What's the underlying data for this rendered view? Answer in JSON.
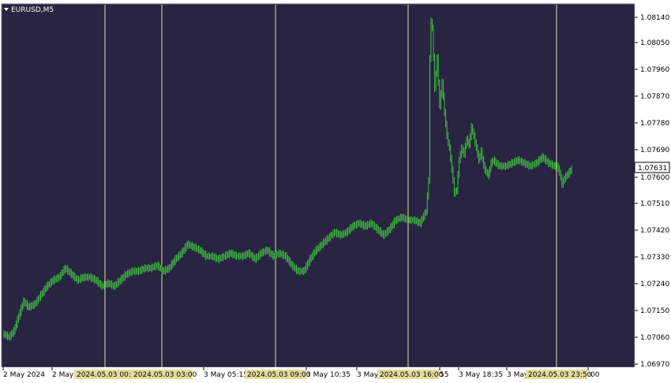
{
  "chart_data": {
    "type": "bar",
    "title": "EURUSD,M5",
    "series": [
      {
        "name": "",
        "kind": "ohlc_bars"
      }
    ],
    "ylim": [
      1.0697,
      1.0818
    ],
    "yticks": [
      "1.08140",
      "1.08050",
      "1.07960",
      "1.07870",
      "1.07780",
      "1.07690",
      "1.07600",
      "1.07510",
      "1.07420",
      "1.07330",
      "1.07240",
      "1.07150",
      "1.07060",
      "1.06970"
    ],
    "current_price": "1.07631",
    "xtick_labels": [
      "2 May 2024",
      "2 May",
      "3 May 05:15",
      "3 May 10:35",
      "3 May",
      "55",
      "3 May 18:35",
      "3 May",
      ":00"
    ],
    "vertical_markers": [
      "2024.05.03 00:00",
      "2024.05.03 03:00",
      "2024.05.03 09:00",
      "2024.05.03 16:00",
      "2024.05.03 23:50"
    ],
    "price_path": [
      [
        0,
        1.0708
      ],
      [
        4,
        1.0707
      ],
      [
        8,
        1.0709
      ],
      [
        12,
        1.0714
      ],
      [
        16,
        1.0719
      ],
      [
        20,
        1.0717
      ],
      [
        25,
        1.0718
      ],
      [
        30,
        1.0721
      ],
      [
        35,
        1.0724
      ],
      [
        40,
        1.0726
      ],
      [
        45,
        1.0727
      ],
      [
        50,
        1.073
      ],
      [
        55,
        1.0728
      ],
      [
        60,
        1.0726
      ],
      [
        65,
        1.0727
      ],
      [
        70,
        1.0727
      ],
      [
        75,
        1.0726
      ],
      [
        80,
        1.0724
      ],
      [
        85,
        1.0725
      ],
      [
        90,
        1.0724
      ],
      [
        95,
        1.0726
      ],
      [
        100,
        1.0728
      ],
      [
        105,
        1.0729
      ],
      [
        110,
        1.0729
      ],
      [
        115,
        1.073
      ],
      [
        120,
        1.073
      ],
      [
        125,
        1.0731
      ],
      [
        130,
        1.0729
      ],
      [
        135,
        1.073
      ],
      [
        140,
        1.0733
      ],
      [
        145,
        1.0735
      ],
      [
        150,
        1.0738
      ],
      [
        155,
        1.0737
      ],
      [
        160,
        1.0736
      ],
      [
        165,
        1.0734
      ],
      [
        170,
        1.0734
      ],
      [
        175,
        1.0733
      ],
      [
        180,
        1.0734
      ],
      [
        185,
        1.0735
      ],
      [
        190,
        1.0734
      ],
      [
        195,
        1.0734
      ],
      [
        200,
        1.0735
      ],
      [
        205,
        1.0733
      ],
      [
        210,
        1.0735
      ],
      [
        215,
        1.0736
      ],
      [
        220,
        1.0734
      ],
      [
        225,
        1.0735
      ],
      [
        230,
        1.0734
      ],
      [
        235,
        1.0731
      ],
      [
        240,
        1.0729
      ],
      [
        245,
        1.0729
      ],
      [
        250,
        1.0733
      ],
      [
        255,
        1.0736
      ],
      [
        260,
        1.0738
      ],
      [
        265,
        1.074
      ],
      [
        270,
        1.0742
      ],
      [
        275,
        1.0741
      ],
      [
        280,
        1.0742
      ],
      [
        285,
        1.0744
      ],
      [
        290,
        1.0745
      ],
      [
        295,
        1.0744
      ],
      [
        300,
        1.0745
      ],
      [
        305,
        1.0743
      ],
      [
        310,
        1.0741
      ],
      [
        315,
        1.0743
      ],
      [
        320,
        1.0746
      ],
      [
        325,
        1.0747
      ],
      [
        330,
        1.0746
      ],
      [
        335,
        1.0746
      ],
      [
        340,
        1.0745
      ],
      [
        345,
        1.0749
      ],
      [
        347,
        1.0759
      ],
      [
        348,
        1.08
      ],
      [
        349,
        1.0812
      ],
      [
        350,
        1.081
      ],
      [
        352,
        1.079
      ],
      [
        354,
        1.08
      ],
      [
        356,
        1.0784
      ],
      [
        358,
        1.0792
      ],
      [
        360,
        1.0782
      ],
      [
        362,
        1.0774
      ],
      [
        364,
        1.077
      ],
      [
        366,
        1.0763
      ],
      [
        368,
        1.0755
      ],
      [
        370,
        1.0756
      ],
      [
        372,
        1.0766
      ],
      [
        374,
        1.077
      ],
      [
        376,
        1.0768
      ],
      [
        378,
        1.0773
      ],
      [
        380,
        1.0771
      ],
      [
        382,
        1.0777
      ],
      [
        384,
        1.0774
      ],
      [
        386,
        1.077
      ],
      [
        388,
        1.0766
      ],
      [
        390,
        1.0769
      ],
      [
        392,
        1.0764
      ],
      [
        394,
        1.0762
      ],
      [
        396,
        1.0761
      ],
      [
        398,
        1.0765
      ],
      [
        400,
        1.0766
      ],
      [
        402,
        1.0765
      ],
      [
        405,
        1.0764
      ],
      [
        410,
        1.0764
      ],
      [
        415,
        1.0765
      ],
      [
        420,
        1.0766
      ],
      [
        425,
        1.0765
      ],
      [
        430,
        1.0764
      ],
      [
        435,
        1.0765
      ],
      [
        440,
        1.0767
      ],
      [
        445,
        1.0765
      ],
      [
        450,
        1.0764
      ],
      [
        452,
        1.0764
      ],
      [
        454,
        1.0762
      ],
      [
        456,
        1.0758
      ],
      [
        458,
        1.076
      ],
      [
        460,
        1.0761
      ],
      [
        462,
        1.0762
      ],
      [
        464,
        1.0763
      ]
    ]
  }
}
